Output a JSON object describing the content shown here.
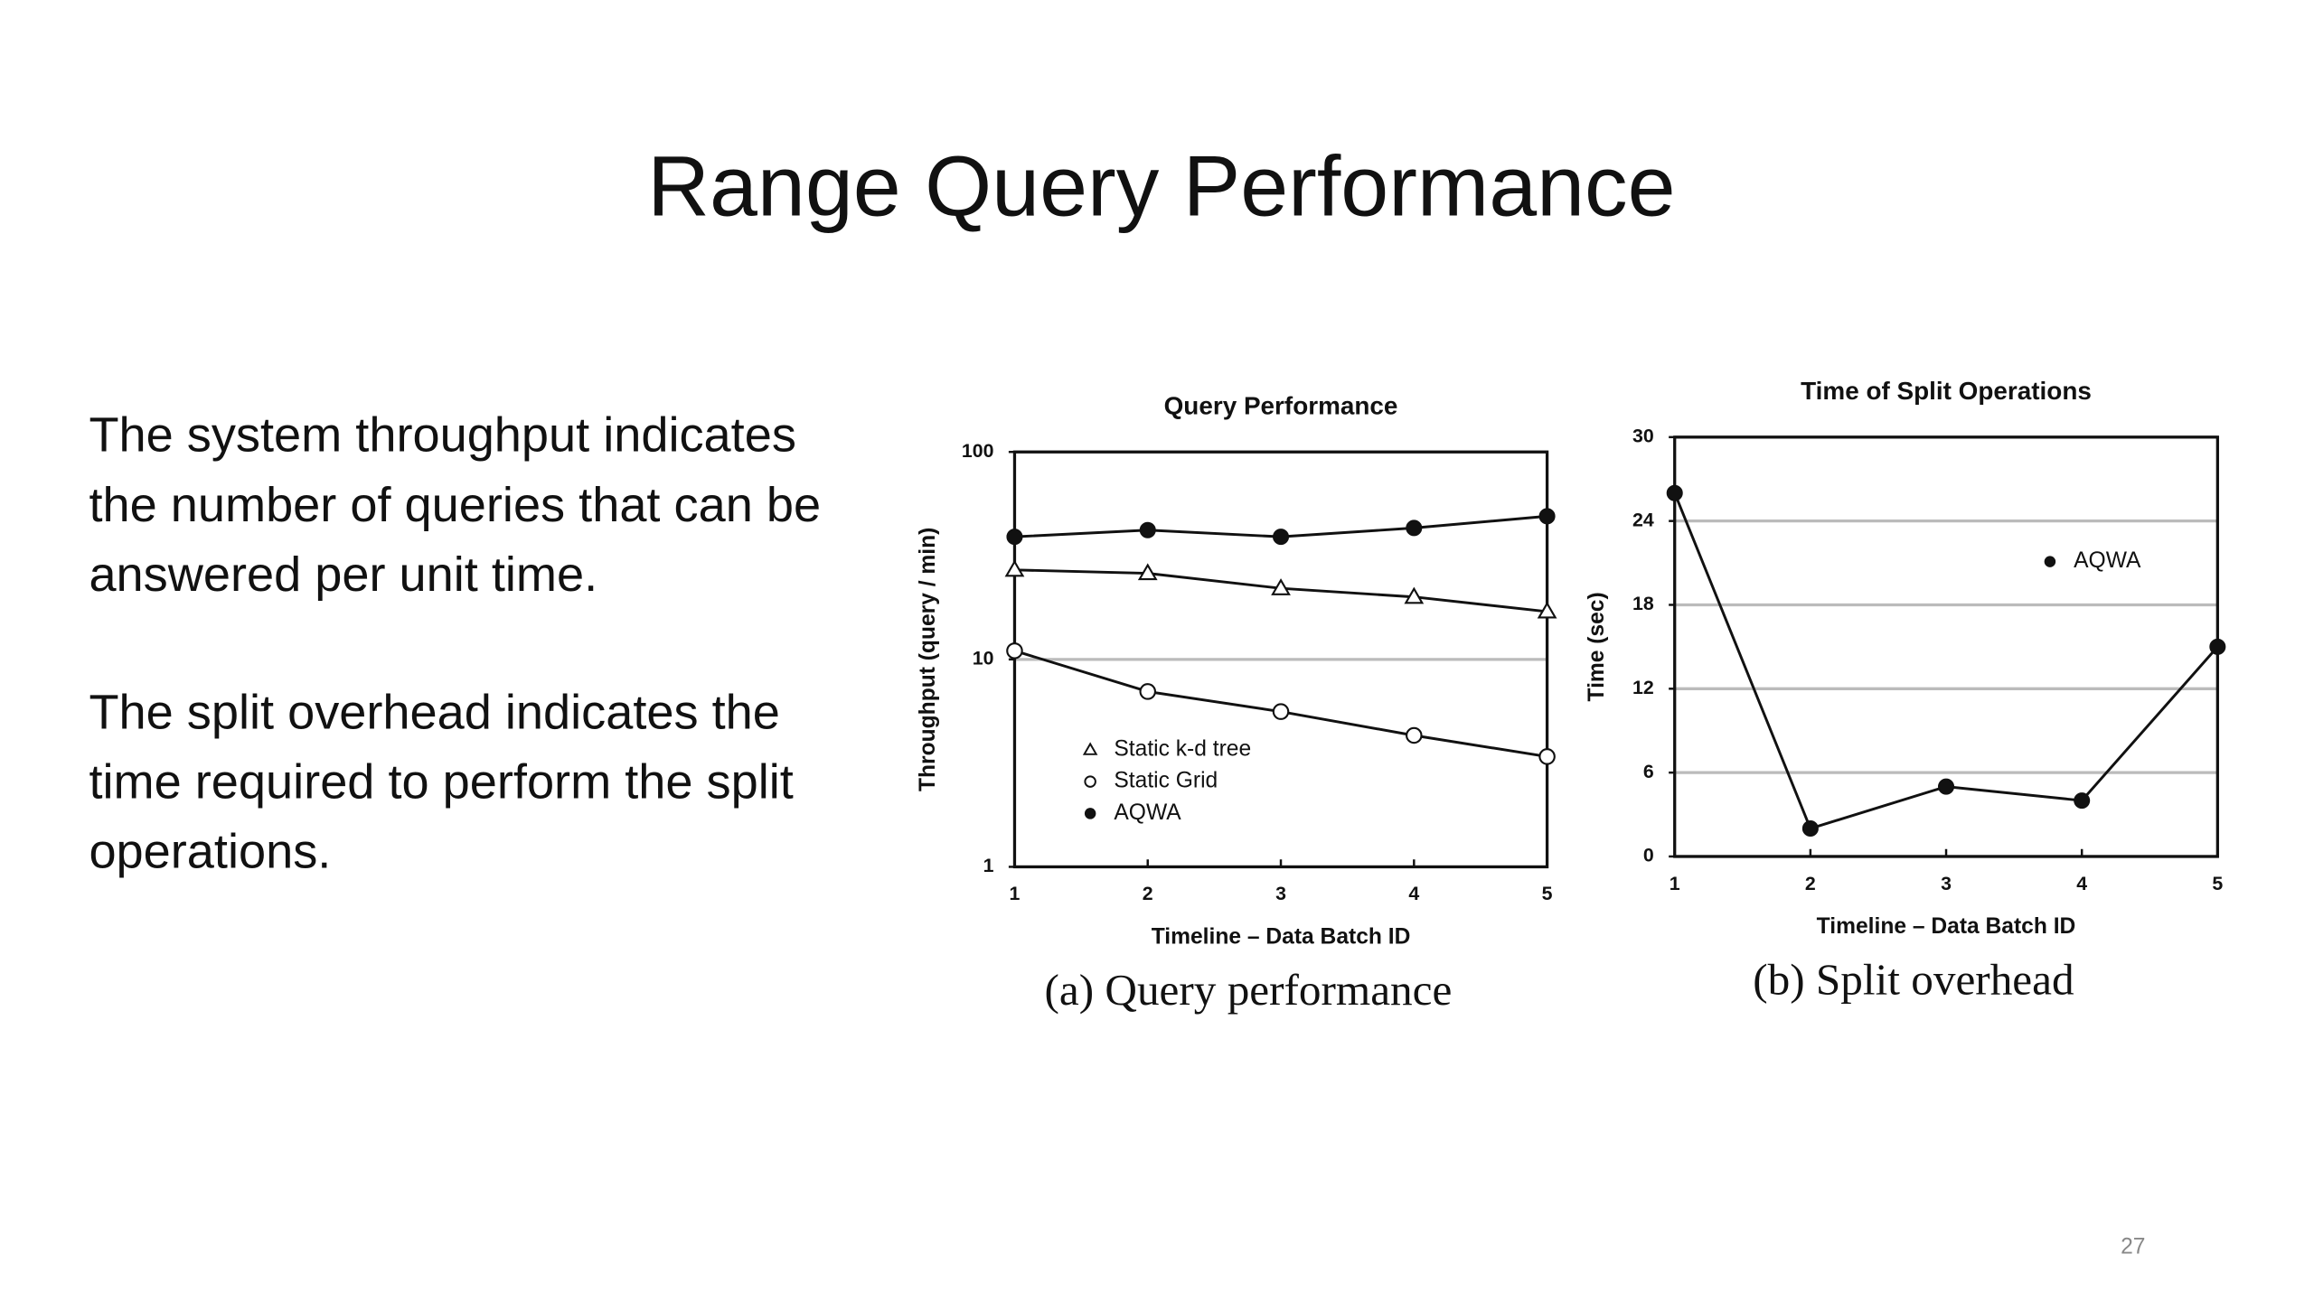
{
  "slide": {
    "title": "Range Query Performance",
    "paragraphs": [
      [
        "The system throughput indicates",
        "the number of queries that can be",
        "answered per unit time."
      ],
      [
        "The split overhead indicates the",
        "time required to perform the split",
        "operations."
      ]
    ],
    "page_number": "27"
  },
  "chart_data": [
    {
      "type": "line",
      "title": "Query Performance",
      "caption": "(a) Query performance",
      "x_label": "Timeline – Data Batch ID",
      "y_label": "Throughput (query / min)",
      "x": [
        1,
        2,
        3,
        4,
        5
      ],
      "xlim": [
        1,
        5
      ],
      "xticks": [
        1,
        2,
        3,
        4,
        5
      ],
      "ylim": [
        1,
        100
      ],
      "yticks": [
        1,
        10,
        100
      ],
      "y_scale": "log",
      "grid": true,
      "legend": "lower-left",
      "series": [
        {
          "name": "Static k-d tree",
          "color": "#111111",
          "marker": "triangle",
          "values": [
            27,
            26,
            22,
            20,
            17
          ]
        },
        {
          "name": "Static Grid",
          "color": "#111111",
          "marker": "open-circle",
          "values": [
            11,
            7,
            5.6,
            4.3,
            3.4
          ]
        },
        {
          "name": "AQWA",
          "color": "#111111",
          "marker": "filled-circle",
          "values": [
            39,
            42,
            39,
            43,
            49
          ]
        }
      ]
    },
    {
      "type": "line",
      "title": "Time of Split Operations",
      "caption": "(b) Split overhead",
      "x_label": "Timeline – Data Batch ID",
      "y_label": "Time (sec)",
      "x": [
        1,
        2,
        3,
        4,
        5
      ],
      "xlim": [
        1,
        5
      ],
      "xticks": [
        1,
        2,
        3,
        4,
        5
      ],
      "ylim": [
        0,
        30
      ],
      "yticks": [
        0,
        6,
        12,
        18,
        24,
        30
      ],
      "y_scale": "linear",
      "grid": true,
      "legend": "upper-right",
      "series": [
        {
          "name": "AQWA",
          "color": "#111111",
          "marker": "filled-circle",
          "values": [
            26,
            2,
            5,
            4,
            15
          ]
        }
      ]
    }
  ]
}
